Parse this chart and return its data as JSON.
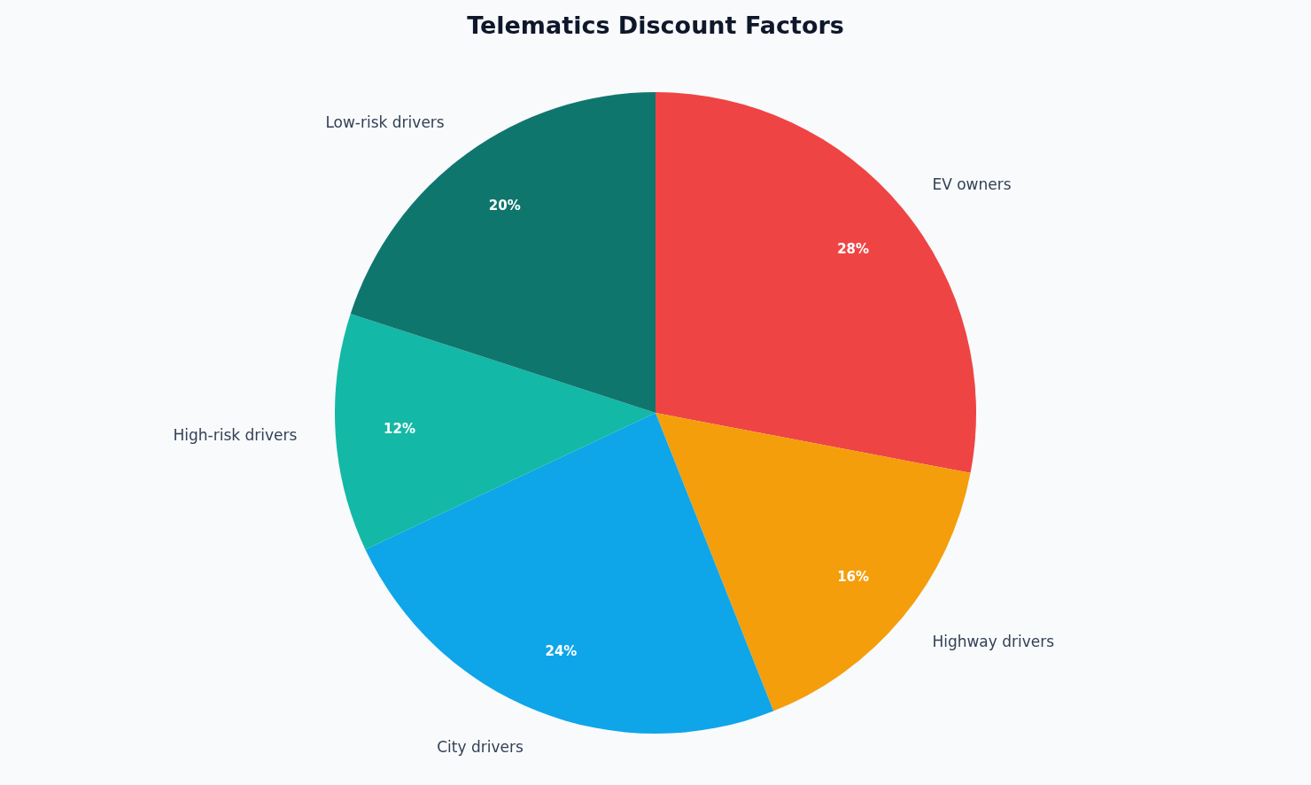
{
  "chart_data": {
    "type": "pie",
    "title": "Telematics Discount Factors",
    "categories": [
      "EV owners",
      "Highway drivers",
      "City drivers",
      "High-risk drivers",
      "Low-risk drivers"
    ],
    "values": [
      28,
      16,
      24,
      12,
      20
    ],
    "colors": [
      "#ef4444",
      "#f59e0b",
      "#0ea5e9",
      "#14b8a6",
      "#0f766e"
    ],
    "value_labels": [
      "28%",
      "16%",
      "24%",
      "12%",
      "20%"
    ]
  }
}
